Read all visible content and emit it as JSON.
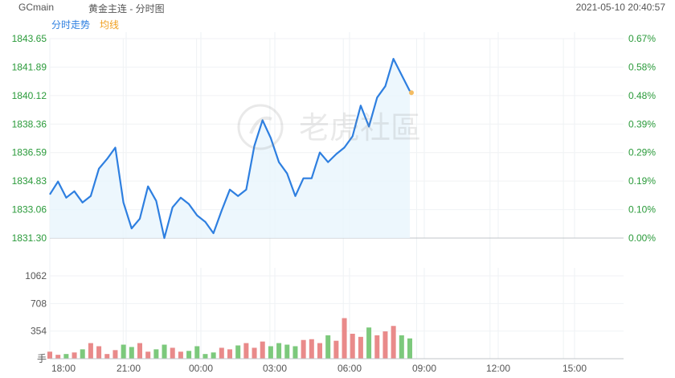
{
  "header": {
    "symbol": "GCmain",
    "title": "黄金主连 - 分时图",
    "datetime": "2021-05-10 20:40:57"
  },
  "legend": {
    "price_label": "分时走势",
    "avg_label": "均线",
    "price_color": "#2e7fe0",
    "avg_color": "#f0a020"
  },
  "watermark": {
    "text": "老虎社區"
  },
  "colors": {
    "axis_text_green": "#2a9a3a",
    "up_bar": "#e98a8a",
    "down_bar": "#7cc97c",
    "fill": "#e8f5fc"
  },
  "chart_data": [
    {
      "type": "line",
      "title": "",
      "xlabel": "",
      "ylabel": "",
      "ylim": [
        1831.3,
        1843.65
      ],
      "y_ticks": [
        "1843.65",
        "1841.89",
        "1840.12",
        "1838.36",
        "1836.59",
        "1834.83",
        "1833.06",
        "1831.30"
      ],
      "y_right_ticks": [
        "0.67%",
        "0.58%",
        "0.48%",
        "0.39%",
        "0.29%",
        "0.19%",
        "0.10%",
        "0.00%"
      ],
      "x_ticks": [
        "18:00",
        "21:00",
        "00:00",
        "03:00",
        "06:00",
        "09:00",
        "12:00",
        "15:00"
      ],
      "x": [
        "18:00",
        "18:20",
        "18:40",
        "19:00",
        "19:20",
        "19:40",
        "20:00",
        "20:20",
        "20:40",
        "21:00",
        "21:20",
        "21:40",
        "22:00",
        "22:20",
        "22:40",
        "23:00",
        "23:20",
        "23:40",
        "00:00",
        "00:20",
        "00:40",
        "01:00",
        "01:20",
        "01:40",
        "02:00",
        "02:20",
        "02:40",
        "03:00",
        "03:20",
        "03:40",
        "04:00",
        "04:20",
        "04:40",
        "05:00",
        "05:20",
        "05:40",
        "06:00",
        "06:20",
        "06:40",
        "07:00",
        "07:20",
        "07:40",
        "08:00",
        "08:10",
        "08:20"
      ],
      "series": [
        {
          "values": [
            1834.0,
            1834.8,
            1833.8,
            1834.2,
            1833.5,
            1833.9,
            1835.6,
            1836.2,
            1836.9,
            1833.5,
            1831.9,
            1832.5,
            1834.5,
            1833.6,
            1831.3,
            1833.2,
            1833.8,
            1833.4,
            1832.7,
            1832.3,
            1831.6,
            1833.0,
            1834.3,
            1833.9,
            1834.3,
            1837.0,
            1838.6,
            1837.5,
            1836.0,
            1835.3,
            1833.9,
            1835.0,
            1835.0,
            1836.6,
            1836.0,
            1836.5,
            1836.9,
            1837.6,
            1839.5,
            1838.2,
            1840.0,
            1840.7,
            1842.4,
            1841.4,
            1840.4
          ]
        }
      ]
    },
    {
      "type": "bar",
      "title": "",
      "xlabel": "",
      "ylabel": "",
      "ylim": [
        0,
        1062
      ],
      "y_ticks": [
        "1062",
        "708",
        "354",
        "手"
      ],
      "volumes": [
        90,
        50,
        60,
        80,
        120,
        200,
        160,
        60,
        110,
        180,
        150,
        200,
        90,
        120,
        180,
        140,
        90,
        100,
        160,
        60,
        80,
        140,
        120,
        170,
        200,
        140,
        220,
        160,
        200,
        180,
        160,
        240,
        250,
        200,
        300,
        230,
        520,
        320,
        280,
        400,
        300,
        350,
        420,
        300,
        260
      ]
    }
  ]
}
